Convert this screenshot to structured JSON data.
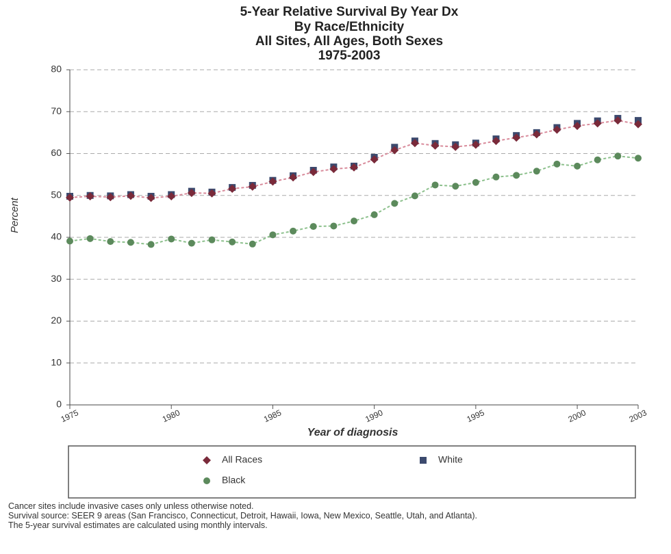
{
  "chart_data": {
    "type": "line",
    "title": [
      "5-Year Relative Survival By Year Dx",
      "By Race/Ethnicity",
      "All Sites, All Ages, Both Sexes",
      "1975-2003"
    ],
    "x_label": "Year of diagnosis",
    "y_label": "Percent",
    "x": [
      1975,
      1976,
      1977,
      1978,
      1979,
      1980,
      1981,
      1982,
      1983,
      1984,
      1985,
      1986,
      1987,
      1988,
      1989,
      1990,
      1991,
      1992,
      1993,
      1994,
      1995,
      1996,
      1997,
      1998,
      1999,
      2000,
      2001,
      2002,
      2003
    ],
    "series": [
      {
        "name": "White",
        "color": "#3c4a6e",
        "marker": "square",
        "values": [
          49.8,
          50.0,
          49.9,
          50.2,
          49.8,
          50.2,
          51.0,
          50.8,
          51.9,
          52.4,
          53.6,
          54.7,
          56.0,
          56.8,
          57.0,
          59.1,
          61.5,
          63.0,
          62.4,
          62.1,
          62.5,
          63.5,
          64.3,
          65.0,
          66.2,
          67.2,
          67.8,
          68.4,
          67.9
        ]
      },
      {
        "name": "All Races",
        "color": "#7a2a3a",
        "marker": "diamond",
        "line_color": "#d88a9a",
        "values": [
          49.5,
          49.8,
          49.6,
          49.9,
          49.4,
          49.8,
          50.6,
          50.5,
          51.6,
          52.1,
          53.3,
          54.3,
          55.6,
          56.3,
          56.7,
          58.6,
          60.8,
          62.5,
          61.9,
          61.6,
          62.1,
          63.0,
          63.8,
          64.6,
          65.7,
          66.6,
          67.2,
          67.9,
          67.0
        ]
      },
      {
        "name": "Black",
        "color": "#5c8a5c",
        "marker": "circle",
        "line_color": "#8cc08c",
        "values": [
          39.1,
          39.7,
          39.0,
          38.8,
          38.3,
          39.6,
          38.6,
          39.4,
          38.9,
          38.4,
          40.6,
          41.5,
          42.6,
          42.7,
          43.9,
          45.4,
          48.1,
          49.9,
          52.5,
          52.2,
          53.1,
          54.4,
          54.8,
          55.8,
          57.5,
          57.0,
          58.5,
          59.4,
          58.9
        ]
      }
    ],
    "xlim": [
      1975,
      2003
    ],
    "xticks": [
      1975,
      1980,
      1985,
      1990,
      1995,
      2000,
      2003
    ],
    "ylim": [
      0,
      80
    ],
    "yticks": [
      0,
      10,
      20,
      30,
      40,
      50,
      60,
      70,
      80
    ],
    "grid": true,
    "footnotes": [
      "Cancer sites include invasive cases only unless otherwise noted.",
      "Survival source: SEER 9 areas (San Francisco, Connecticut, Detroit, Hawaii, Iowa, New Mexico, Seattle, Utah, and Atlanta).",
      "The 5-year survival estimates are calculated using monthly intervals."
    ]
  }
}
